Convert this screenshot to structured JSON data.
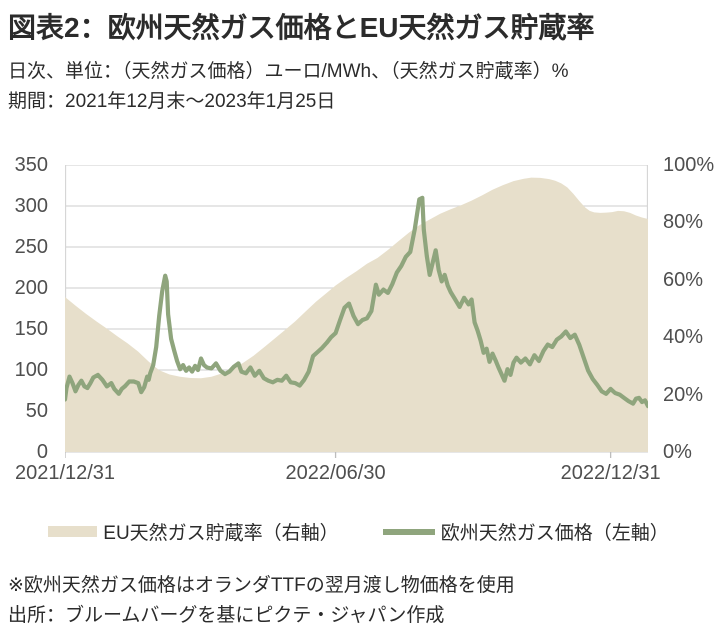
{
  "header": {
    "title": "図表2：欧州天然ガス価格とEU天然ガス貯蔵率",
    "subtitle": "日次、単位：（天然ガス価格）ユーロ/MWh、（天然ガス貯蔵率）%",
    "period": "期間：2021年12月末～2023年1月25日"
  },
  "chart_data": {
    "type": "area+line",
    "x_unit": "days since 2021-12-31",
    "x_range": [
      0,
      390
    ],
    "x_ticks": [
      {
        "pos": 0,
        "label": "2021/12/31"
      },
      {
        "pos": 181,
        "label": "2022/06/30"
      },
      {
        "pos": 365,
        "label": "2022/12/31"
      }
    ],
    "left_axis": {
      "min": 0,
      "max": 350,
      "tick_labels": [
        "0",
        "50",
        "100",
        "150",
        "200",
        "250",
        "300",
        "350"
      ],
      "tick_values": [
        0,
        50,
        100,
        150,
        200,
        250,
        300,
        350
      ],
      "unit": "ユーロ/MWh"
    },
    "right_axis": {
      "min": 0,
      "max": 100,
      "tick_labels": [
        "0%",
        "20%",
        "40%",
        "60%",
        "80%",
        "100%"
      ],
      "tick_values": [
        0,
        20,
        40,
        60,
        80,
        100
      ],
      "unit": "%"
    },
    "grid": true,
    "legend_position": "bottom",
    "series": [
      {
        "name": "EU天然ガス貯蔵率（右軸）",
        "type": "area",
        "axis": "right",
        "color": "#e7dfcb",
        "points": [
          [
            0,
            54
          ],
          [
            7,
            51
          ],
          [
            14,
            48.2
          ],
          [
            21,
            45.5
          ],
          [
            28,
            43
          ],
          [
            35,
            40.3
          ],
          [
            42,
            37.8
          ],
          [
            49,
            35
          ],
          [
            56,
            31.5
          ],
          [
            63,
            28.5
          ],
          [
            70,
            27
          ],
          [
            77,
            26.2
          ],
          [
            84,
            25.8
          ],
          [
            91,
            25.7
          ],
          [
            98,
            26.2
          ],
          [
            105,
            27.4
          ],
          [
            112,
            29
          ],
          [
            119,
            31
          ],
          [
            126,
            33.5
          ],
          [
            133,
            36.4
          ],
          [
            140,
            39.4
          ],
          [
            147,
            42.4
          ],
          [
            154,
            45.5
          ],
          [
            161,
            49
          ],
          [
            168,
            52.4
          ],
          [
            175,
            55.4
          ],
          [
            181,
            58
          ],
          [
            188,
            60.6
          ],
          [
            195,
            63
          ],
          [
            202,
            65.6
          ],
          [
            209,
            67.6
          ],
          [
            216,
            70.4
          ],
          [
            223,
            73.4
          ],
          [
            230,
            76.4
          ],
          [
            237,
            79
          ],
          [
            244,
            81
          ],
          [
            251,
            83
          ],
          [
            258,
            84.6
          ],
          [
            265,
            86
          ],
          [
            272,
            87.6
          ],
          [
            279,
            89.4
          ],
          [
            286,
            91.4
          ],
          [
            293,
            93
          ],
          [
            300,
            94.4
          ],
          [
            307,
            95.2
          ],
          [
            312,
            95.6
          ],
          [
            318,
            95.5
          ],
          [
            324,
            95.1
          ],
          [
            328,
            94.5
          ],
          [
            332,
            93.6
          ],
          [
            336,
            92.2
          ],
          [
            340,
            90
          ],
          [
            344,
            87.5
          ],
          [
            348,
            85.2
          ],
          [
            351,
            84
          ],
          [
            354,
            83.5
          ],
          [
            358,
            83.3
          ],
          [
            362,
            83.4
          ],
          [
            366,
            83.6
          ],
          [
            370,
            84
          ],
          [
            374,
            83.9
          ],
          [
            378,
            83.3
          ],
          [
            382,
            82.4
          ],
          [
            386,
            81.7
          ],
          [
            390,
            81.2
          ]
        ]
      },
      {
        "name": "欧州天然ガス価格（左軸）",
        "type": "line",
        "axis": "left",
        "color": "#8fa57d",
        "points": [
          [
            0,
            64
          ],
          [
            1,
            78
          ],
          [
            3,
            92
          ],
          [
            5,
            84
          ],
          [
            7,
            74
          ],
          [
            9,
            82
          ],
          [
            11,
            87
          ],
          [
            13,
            80
          ],
          [
            15,
            78
          ],
          [
            17,
            84
          ],
          [
            19,
            91
          ],
          [
            22,
            94
          ],
          [
            25,
            88
          ],
          [
            28,
            80
          ],
          [
            31,
            84
          ],
          [
            33,
            77
          ],
          [
            36,
            71
          ],
          [
            38,
            77
          ],
          [
            40,
            80
          ],
          [
            43,
            86
          ],
          [
            46,
            86
          ],
          [
            49,
            84
          ],
          [
            51,
            73
          ],
          [
            53,
            79
          ],
          [
            55,
            92
          ],
          [
            56,
            88
          ],
          [
            57,
            96
          ],
          [
            59,
            106
          ],
          [
            61,
            128
          ],
          [
            63,
            166
          ],
          [
            65,
            196
          ],
          [
            67,
            215
          ],
          [
            68,
            208
          ],
          [
            69,
            168
          ],
          [
            71,
            138
          ],
          [
            73,
            124
          ],
          [
            75,
            111
          ],
          [
            77,
            101
          ],
          [
            79,
            106
          ],
          [
            81,
            99
          ],
          [
            83,
            103
          ],
          [
            85,
            98
          ],
          [
            87,
            105
          ],
          [
            89,
            100
          ],
          [
            91,
            114
          ],
          [
            93,
            106
          ],
          [
            95,
            103
          ],
          [
            98,
            102
          ],
          [
            101,
            108
          ],
          [
            104,
            99
          ],
          [
            107,
            95
          ],
          [
            110,
            98
          ],
          [
            113,
            104
          ],
          [
            116,
            108
          ],
          [
            118,
            98
          ],
          [
            121,
            96
          ],
          [
            124,
            103
          ],
          [
            127,
            93
          ],
          [
            130,
            99
          ],
          [
            133,
            90
          ],
          [
            136,
            87
          ],
          [
            139,
            85
          ],
          [
            142,
            88
          ],
          [
            145,
            87
          ],
          [
            148,
            93
          ],
          [
            151,
            85
          ],
          [
            154,
            84
          ],
          [
            157,
            81
          ],
          [
            160,
            88
          ],
          [
            163,
            98
          ],
          [
            166,
            117
          ],
          [
            169,
            122
          ],
          [
            172,
            127
          ],
          [
            175,
            133
          ],
          [
            178,
            140
          ],
          [
            181,
            145
          ],
          [
            184,
            161
          ],
          [
            187,
            176
          ],
          [
            190,
            181
          ],
          [
            193,
            166
          ],
          [
            196,
            156
          ],
          [
            199,
            161
          ],
          [
            202,
            163
          ],
          [
            205,
            172
          ],
          [
            208,
            204
          ],
          [
            210,
            192
          ],
          [
            213,
            198
          ],
          [
            216,
            194
          ],
          [
            219,
            205
          ],
          [
            222,
            219
          ],
          [
            225,
            227
          ],
          [
            228,
            238
          ],
          [
            231,
            244
          ],
          [
            234,
            272
          ],
          [
            237,
            308
          ],
          [
            239,
            310
          ],
          [
            240,
            271
          ],
          [
            242,
            239
          ],
          [
            244,
            216
          ],
          [
            246,
            231
          ],
          [
            248,
            246
          ],
          [
            250,
            222
          ],
          [
            252,
            208
          ],
          [
            254,
            216
          ],
          [
            256,
            203
          ],
          [
            258,
            195
          ],
          [
            261,
            186
          ],
          [
            264,
            177
          ],
          [
            267,
            188
          ],
          [
            270,
            180
          ],
          [
            272,
            186
          ],
          [
            274,
            158
          ],
          [
            276,
            148
          ],
          [
            278,
            136
          ],
          [
            280,
            121
          ],
          [
            282,
            126
          ],
          [
            284,
            110
          ],
          [
            286,
            120
          ],
          [
            288,
            112
          ],
          [
            290,
            103
          ],
          [
            292,
            95
          ],
          [
            294,
            87
          ],
          [
            296,
            101
          ],
          [
            298,
            94
          ],
          [
            300,
            109
          ],
          [
            302,
            115
          ],
          [
            305,
            109
          ],
          [
            308,
            114
          ],
          [
            311,
            107
          ],
          [
            314,
            118
          ],
          [
            317,
            111
          ],
          [
            320,
            123
          ],
          [
            323,
            131
          ],
          [
            326,
            128
          ],
          [
            329,
            137
          ],
          [
            332,
            141
          ],
          [
            335,
            147
          ],
          [
            338,
            139
          ],
          [
            341,
            143
          ],
          [
            344,
            131
          ],
          [
            347,
            115
          ],
          [
            350,
            99
          ],
          [
            353,
            89
          ],
          [
            356,
            82
          ],
          [
            359,
            74
          ],
          [
            362,
            71
          ],
          [
            365,
            77
          ],
          [
            368,
            72
          ],
          [
            371,
            70
          ],
          [
            374,
            66
          ],
          [
            377,
            62
          ],
          [
            380,
            59
          ],
          [
            382,
            65
          ],
          [
            384,
            66
          ],
          [
            386,
            61
          ],
          [
            388,
            63
          ],
          [
            390,
            56
          ]
        ]
      }
    ]
  },
  "legend": {
    "items": [
      {
        "label": "EU天然ガス貯蔵率（右軸）",
        "swatch": "area"
      },
      {
        "label": "欧州天然ガス価格（左軸）",
        "swatch": "line"
      }
    ]
  },
  "footnotes": {
    "note": "※欧州天然ガス価格はオランダTTFの翌月渡し物価格を使用",
    "source": "出所：ブルームバーグを基にピクテ・ジャパン作成"
  },
  "colors": {
    "area_fill": "#e7dfcb",
    "line": "#8fa57d",
    "grid": "#d6d6d6",
    "axis_text": "#4f4f4f",
    "text": "#2b2b2b",
    "background": "#ffffff"
  }
}
